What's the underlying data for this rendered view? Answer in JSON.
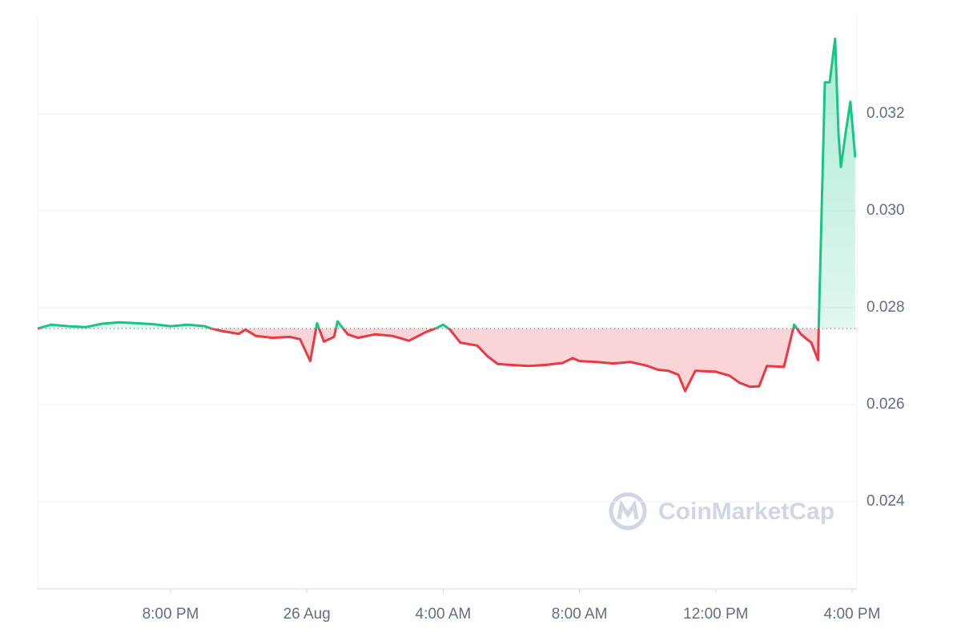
{
  "chart_data": {
    "type": "line",
    "watermark": "CoinMarketCap",
    "baseline": 0.02757,
    "up_color": "#16c784",
    "down_color": "#ea3943",
    "grid": true,
    "xlim": [
      -7.9,
      16.14
    ],
    "xticks": [
      {
        "value": -4,
        "label": "8:00 PM"
      },
      {
        "value": 0,
        "label": "26 Aug"
      },
      {
        "value": 4,
        "label": "4:00 AM"
      },
      {
        "value": 8,
        "label": "8:00 AM"
      },
      {
        "value": 12,
        "label": "12:00 PM"
      },
      {
        "value": 16,
        "label": "4:00 PM"
      }
    ],
    "ylim": [
      0.0222,
      0.03405
    ],
    "yticks": [
      0.024,
      0.026,
      0.028,
      {
        "value": 0.03,
        "label": "0.030"
      },
      0.032
    ],
    "x": [
      -7.9,
      -7.5,
      -7,
      -6.5,
      -6,
      -5.5,
      -5,
      -4.5,
      -4,
      -3.5,
      -3,
      -2.8,
      -2.5,
      -2,
      -1.8,
      -1.5,
      -1,
      -0.5,
      -0.2,
      0.1,
      0.3,
      0.5,
      0.8,
      0.9,
      1.2,
      1.5,
      2,
      2.5,
      3,
      3.5,
      3.8,
      4,
      4.2,
      4.5,
      5,
      5.3,
      5.6,
      6,
      6.5,
      7,
      7.5,
      7.8,
      8,
      8.5,
      9,
      9.5,
      10,
      10.3,
      10.6,
      10.9,
      11.1,
      11.4,
      12,
      12.4,
      12.7,
      13,
      13.27,
      13.5,
      14,
      14.3,
      14.5,
      14.8,
      15.0,
      15.02,
      15.2,
      15.34,
      15.5,
      15.6,
      15.67,
      15.83,
      15.95,
      16.09
    ],
    "values": [
      0.02757,
      0.02765,
      0.02762,
      0.0276,
      0.02767,
      0.0277,
      0.02768,
      0.02766,
      0.02762,
      0.02765,
      0.02762,
      0.02757,
      0.02752,
      0.02746,
      0.02755,
      0.02742,
      0.02738,
      0.0274,
      0.02735,
      0.0269,
      0.02768,
      0.0273,
      0.0274,
      0.02772,
      0.02745,
      0.02738,
      0.02745,
      0.02742,
      0.02732,
      0.0275,
      0.02758,
      0.02765,
      0.02755,
      0.02728,
      0.02722,
      0.027,
      0.02684,
      0.02682,
      0.0268,
      0.02682,
      0.02686,
      0.02696,
      0.0269,
      0.02688,
      0.02685,
      0.02688,
      0.0268,
      0.02672,
      0.0267,
      0.02662,
      0.02628,
      0.0267,
      0.02668,
      0.0266,
      0.02645,
      0.02637,
      0.02638,
      0.0268,
      0.02678,
      0.02765,
      0.02745,
      0.02728,
      0.02692,
      0.02757,
      0.03265,
      0.03265,
      0.03355,
      0.0316,
      0.0309,
      0.0317,
      0.03225,
      0.0311
    ]
  }
}
